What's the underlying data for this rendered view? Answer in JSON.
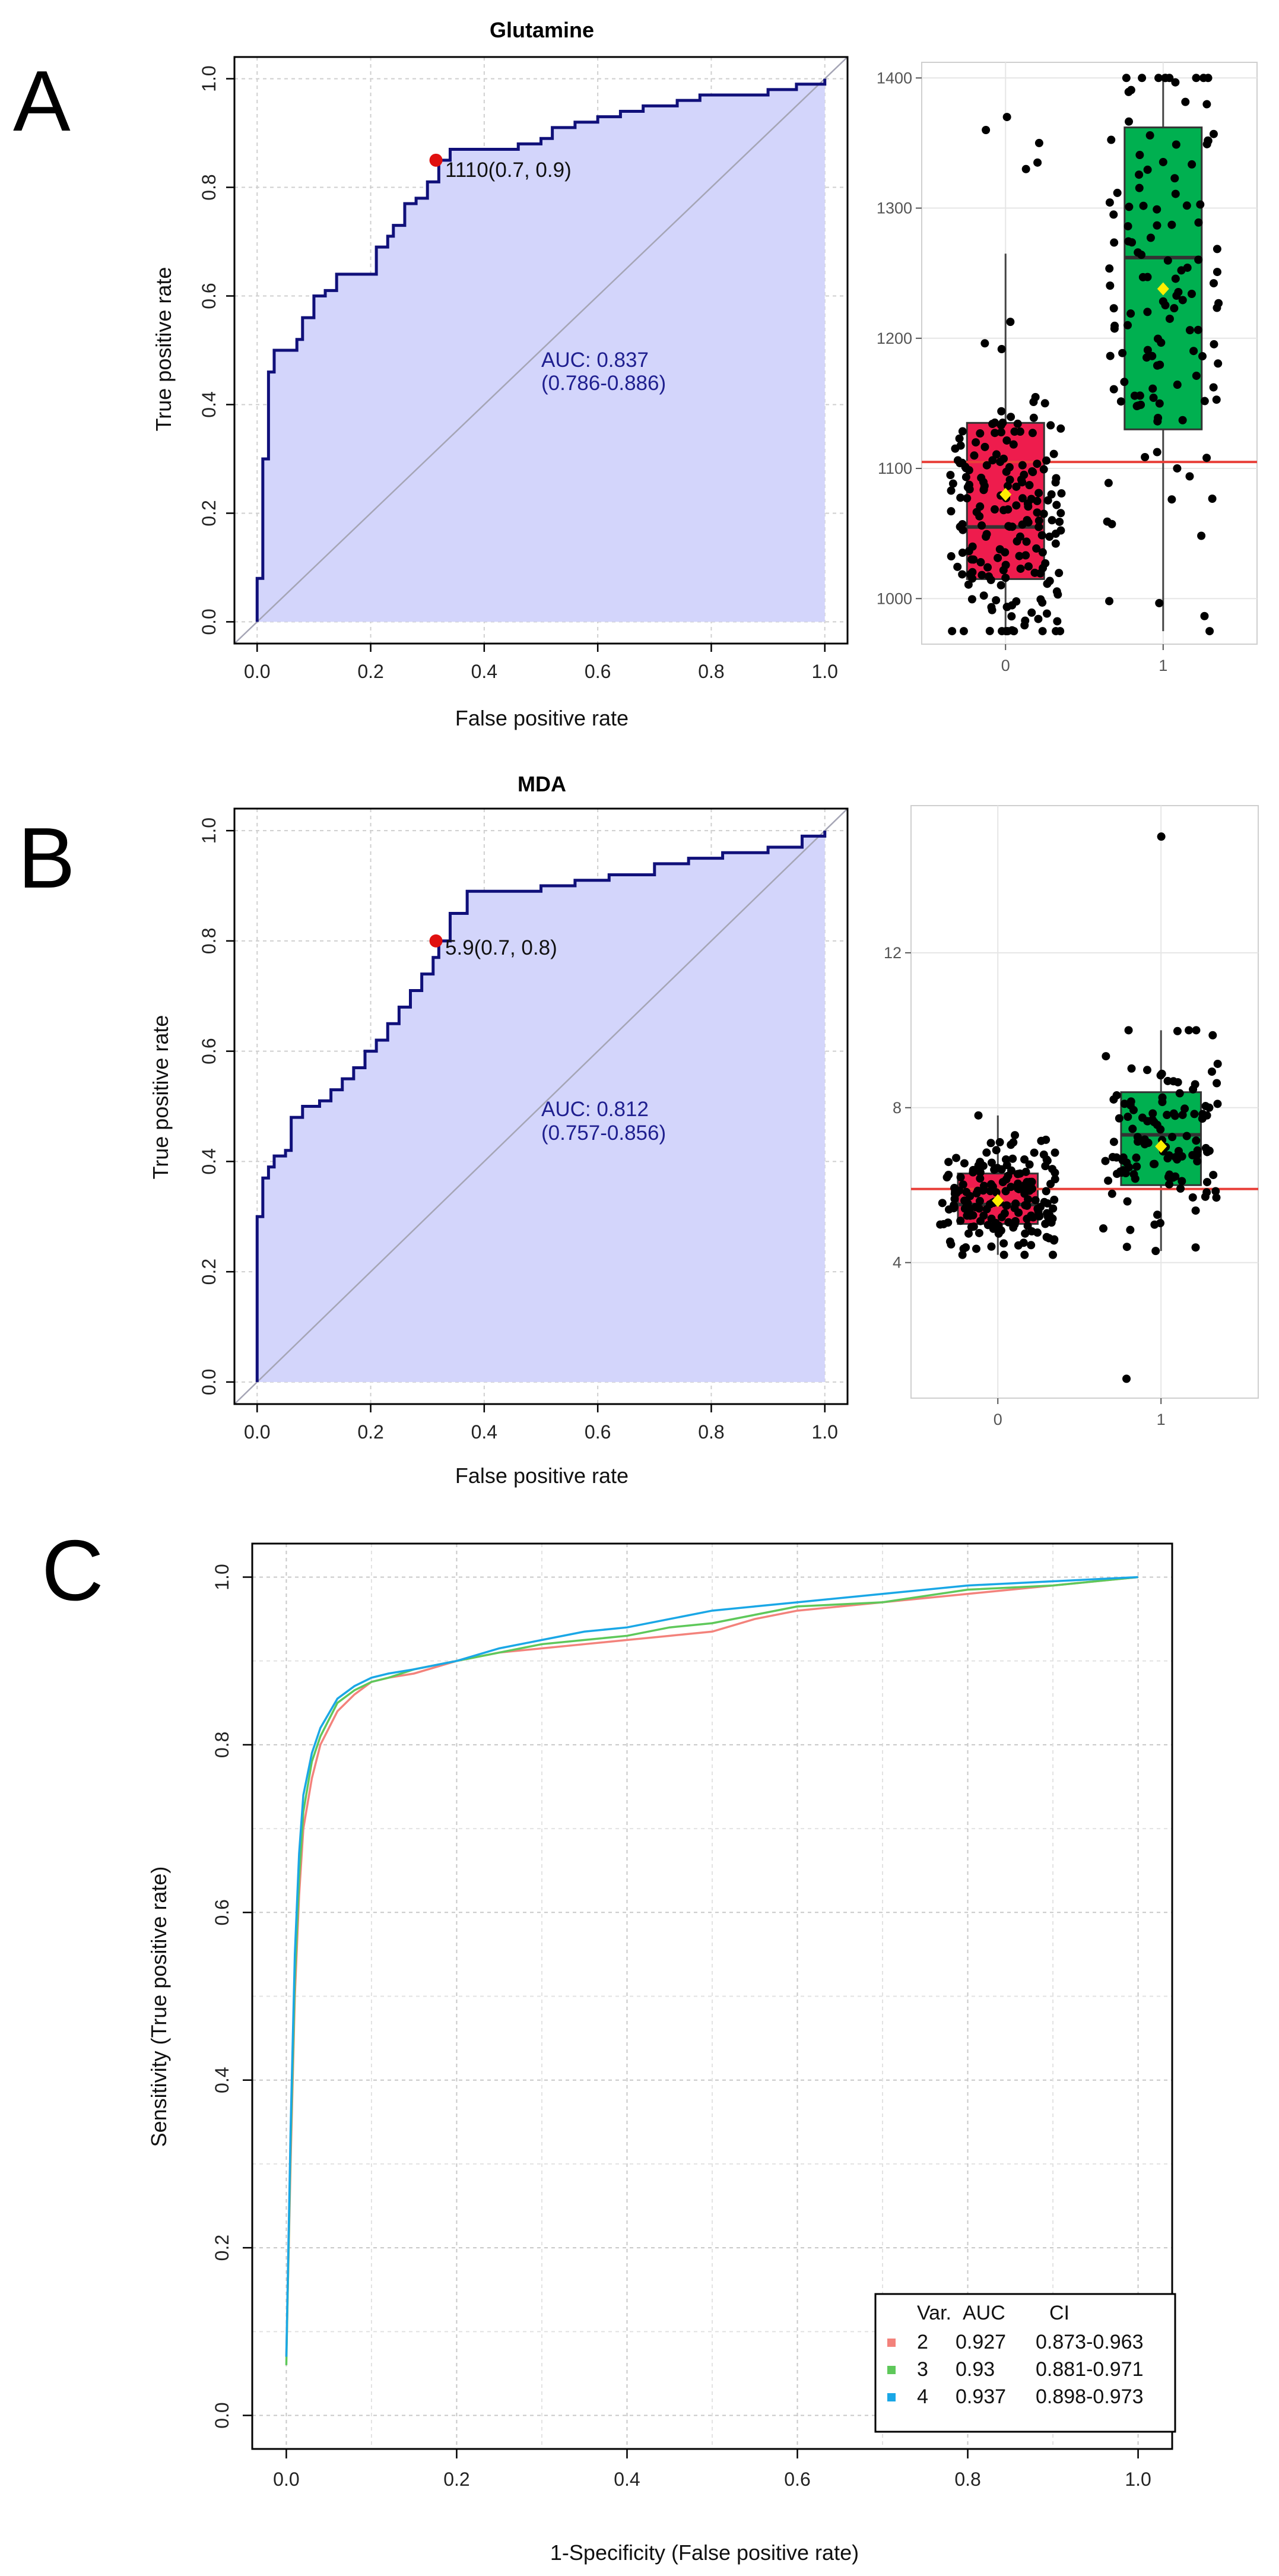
{
  "panel_labels": {
    "a": "A",
    "b": "B",
    "c": "C"
  },
  "colors": {
    "roc_line": "#10107a",
    "roc_fill": "#d3d5fb",
    "group0_box": "#ee1c4d",
    "group1_box": "#00b050",
    "cutoff_line": "#e8403a",
    "cutoff_point": "#e01010",
    "mean_marker": "#ffee00",
    "series_2": "#f3827b",
    "series_3": "#5ec85a",
    "series_4": "#1aa7e6"
  },
  "chart_data": [
    {
      "id": "A_roc",
      "type": "line",
      "title": "Glutamine",
      "xlabel": "False positive rate",
      "ylabel": "True positive rate",
      "xlim": [
        0,
        1
      ],
      "ylim": [
        0,
        1
      ],
      "xticks": [
        "0.0",
        "0.2",
        "0.4",
        "0.6",
        "0.8",
        "1.0"
      ],
      "yticks": [
        "0.0",
        "0.2",
        "0.4",
        "0.6",
        "0.8",
        "1.0"
      ],
      "roc": [
        [
          0,
          0
        ],
        [
          0,
          0.08
        ],
        [
          0.01,
          0.16
        ],
        [
          0.01,
          0.3
        ],
        [
          0.02,
          0.38
        ],
        [
          0.02,
          0.46
        ],
        [
          0.03,
          0.5
        ],
        [
          0.06,
          0.5
        ],
        [
          0.07,
          0.52
        ],
        [
          0.08,
          0.56
        ],
        [
          0.1,
          0.6
        ],
        [
          0.12,
          0.61
        ],
        [
          0.14,
          0.64
        ],
        [
          0.2,
          0.64
        ],
        [
          0.21,
          0.69
        ],
        [
          0.23,
          0.71
        ],
        [
          0.24,
          0.73
        ],
        [
          0.26,
          0.77
        ],
        [
          0.28,
          0.78
        ],
        [
          0.3,
          0.81
        ],
        [
          0.32,
          0.85
        ],
        [
          0.34,
          0.87
        ],
        [
          0.4,
          0.87
        ],
        [
          0.46,
          0.88
        ],
        [
          0.5,
          0.89
        ],
        [
          0.52,
          0.91
        ],
        [
          0.56,
          0.92
        ],
        [
          0.6,
          0.93
        ],
        [
          0.64,
          0.94
        ],
        [
          0.68,
          0.95
        ],
        [
          0.74,
          0.96
        ],
        [
          0.78,
          0.97
        ],
        [
          0.84,
          0.97
        ],
        [
          0.9,
          0.98
        ],
        [
          0.95,
          0.99
        ],
        [
          1,
          1
        ]
      ],
      "auc_label": "AUC: 0.837",
      "ci_label": "(0.786-0.886)",
      "cutoff": {
        "x": 0.315,
        "y": 0.85,
        "label": "1110(0.7, 0.9)"
      }
    },
    {
      "id": "A_box",
      "type": "box",
      "categories": [
        "0",
        "1"
      ],
      "ylim": [
        965,
        1412
      ],
      "yticks": [
        "1000",
        "1100",
        "1200",
        "1300",
        "1400"
      ],
      "cutoff_value": 1105,
      "boxes": [
        {
          "q1": 1015,
          "median": 1055,
          "q3": 1135,
          "whisker_low": 975,
          "whisker_high": 1265,
          "mean": 1080
        },
        {
          "q1": 1130,
          "median": 1262,
          "q3": 1362,
          "whisker_low": 975,
          "whisker_high": 1400,
          "mean": 1238
        }
      ],
      "points": {
        "group0": {
          "n": 190,
          "center": 1060,
          "spread": 55,
          "min": 975,
          "max": 1270,
          "outliers": [
            1360,
            1370,
            1330,
            1335,
            1350
          ]
        },
        "group1": {
          "n": 125,
          "center": 1245,
          "spread": 120,
          "min": 975,
          "max": 1400,
          "outliers": []
        }
      }
    },
    {
      "id": "B_roc",
      "type": "line",
      "title": "MDA",
      "xlabel": "False positive rate",
      "ylabel": "True positive rate",
      "xlim": [
        0,
        1
      ],
      "ylim": [
        0,
        1
      ],
      "xticks": [
        "0.0",
        "0.2",
        "0.4",
        "0.6",
        "0.8",
        "1.0"
      ],
      "yticks": [
        "0.0",
        "0.2",
        "0.4",
        "0.6",
        "0.8",
        "1.0"
      ],
      "roc": [
        [
          0,
          0
        ],
        [
          0,
          0.3
        ],
        [
          0.01,
          0.34
        ],
        [
          0.01,
          0.37
        ],
        [
          0.02,
          0.39
        ],
        [
          0.03,
          0.41
        ],
        [
          0.05,
          0.42
        ],
        [
          0.06,
          0.48
        ],
        [
          0.08,
          0.5
        ],
        [
          0.11,
          0.51
        ],
        [
          0.13,
          0.53
        ],
        [
          0.15,
          0.55
        ],
        [
          0.17,
          0.57
        ],
        [
          0.19,
          0.6
        ],
        [
          0.21,
          0.62
        ],
        [
          0.23,
          0.65
        ],
        [
          0.25,
          0.68
        ],
        [
          0.27,
          0.71
        ],
        [
          0.29,
          0.74
        ],
        [
          0.31,
          0.77
        ],
        [
          0.32,
          0.8
        ],
        [
          0.34,
          0.85
        ],
        [
          0.37,
          0.89
        ],
        [
          0.43,
          0.89
        ],
        [
          0.5,
          0.9
        ],
        [
          0.56,
          0.91
        ],
        [
          0.62,
          0.92
        ],
        [
          0.7,
          0.94
        ],
        [
          0.76,
          0.95
        ],
        [
          0.82,
          0.96
        ],
        [
          0.9,
          0.97
        ],
        [
          0.96,
          0.99
        ],
        [
          1,
          1
        ]
      ],
      "auc_label": "AUC: 0.812",
      "ci_label": "(0.757-0.856)",
      "cutoff": {
        "x": 0.315,
        "y": 0.8,
        "label": "5.9(0.7, 0.8)"
      }
    },
    {
      "id": "B_box",
      "type": "box",
      "categories": [
        "0",
        "1"
      ],
      "ylim": [
        0.5,
        15.8
      ],
      "yticks": [
        "4",
        "8",
        "12"
      ],
      "cutoff_value": 5.9,
      "boxes": [
        {
          "q1": 5.0,
          "median": 5.5,
          "q3": 6.3,
          "whisker_low": 4.2,
          "whisker_high": 7.8,
          "mean": 5.6
        },
        {
          "q1": 6.0,
          "median": 7.3,
          "q3": 8.4,
          "whisker_low": 4.3,
          "whisker_high": 10.0,
          "mean": 7.0
        }
      ],
      "points": {
        "group0": {
          "n": 180,
          "center": 5.6,
          "spread": 0.8,
          "min": 4.2,
          "max": 7.8,
          "outliers": []
        },
        "group1": {
          "n": 120,
          "center": 7.2,
          "spread": 1.3,
          "min": 4.3,
          "max": 10.0,
          "outliers": [
            15.0,
            1.0
          ]
        }
      }
    },
    {
      "id": "C_roc",
      "type": "line",
      "xlabel": "1-Specificity (False positive rate)",
      "ylabel": "Sensitivity (True positive rate)",
      "xlim": [
        -0.04,
        1.04
      ],
      "ylim": [
        -0.04,
        1.04
      ],
      "xticks": [
        "0.0",
        "0.2",
        "0.4",
        "0.6",
        "0.8",
        "1.0"
      ],
      "yticks": [
        "0.0",
        "0.2",
        "0.4",
        "0.6",
        "0.8",
        "1.0"
      ],
      "legend": {
        "position": "bottom-right",
        "header": [
          "Var.",
          "AUC",
          "CI"
        ],
        "entries": [
          {
            "var": "2",
            "auc": "0.927",
            "ci": "0.873-0.963"
          },
          {
            "var": "3",
            "auc": "0.93",
            "ci": "0.881-0.971"
          },
          {
            "var": "4",
            "auc": "0.937",
            "ci": "0.898-0.973"
          }
        ]
      },
      "series": [
        {
          "name": "2",
          "points": [
            [
              0,
              0.07
            ],
            [
              0.005,
              0.3
            ],
            [
              0.01,
              0.5
            ],
            [
              0.015,
              0.62
            ],
            [
              0.02,
              0.7
            ],
            [
              0.03,
              0.76
            ],
            [
              0.04,
              0.8
            ],
            [
              0.06,
              0.84
            ],
            [
              0.08,
              0.86
            ],
            [
              0.1,
              0.875
            ],
            [
              0.12,
              0.88
            ],
            [
              0.15,
              0.885
            ],
            [
              0.2,
              0.9
            ],
            [
              0.25,
              0.91
            ],
            [
              0.3,
              0.915
            ],
            [
              0.35,
              0.92
            ],
            [
              0.4,
              0.925
            ],
            [
              0.45,
              0.93
            ],
            [
              0.5,
              0.935
            ],
            [
              0.55,
              0.95
            ],
            [
              0.6,
              0.96
            ],
            [
              0.7,
              0.97
            ],
            [
              0.8,
              0.98
            ],
            [
              0.9,
              0.99
            ],
            [
              1,
              1
            ]
          ]
        },
        {
          "name": "3",
          "points": [
            [
              0,
              0.06
            ],
            [
              0.005,
              0.32
            ],
            [
              0.01,
              0.52
            ],
            [
              0.015,
              0.64
            ],
            [
              0.02,
              0.72
            ],
            [
              0.03,
              0.78
            ],
            [
              0.04,
              0.81
            ],
            [
              0.06,
              0.85
            ],
            [
              0.08,
              0.865
            ],
            [
              0.1,
              0.875
            ],
            [
              0.12,
              0.88
            ],
            [
              0.15,
              0.89
            ],
            [
              0.2,
              0.9
            ],
            [
              0.25,
              0.91
            ],
            [
              0.3,
              0.92
            ],
            [
              0.35,
              0.925
            ],
            [
              0.4,
              0.93
            ],
            [
              0.45,
              0.94
            ],
            [
              0.5,
              0.945
            ],
            [
              0.55,
              0.955
            ],
            [
              0.6,
              0.965
            ],
            [
              0.7,
              0.97
            ],
            [
              0.8,
              0.985
            ],
            [
              0.9,
              0.99
            ],
            [
              1,
              1
            ]
          ]
        },
        {
          "name": "4",
          "points": [
            [
              0,
              0.07
            ],
            [
              0.005,
              0.34
            ],
            [
              0.01,
              0.55
            ],
            [
              0.015,
              0.67
            ],
            [
              0.02,
              0.74
            ],
            [
              0.03,
              0.79
            ],
            [
              0.04,
              0.82
            ],
            [
              0.06,
              0.855
            ],
            [
              0.08,
              0.87
            ],
            [
              0.1,
              0.88
            ],
            [
              0.12,
              0.885
            ],
            [
              0.15,
              0.89
            ],
            [
              0.2,
              0.9
            ],
            [
              0.25,
              0.915
            ],
            [
              0.3,
              0.925
            ],
            [
              0.35,
              0.935
            ],
            [
              0.4,
              0.94
            ],
            [
              0.45,
              0.95
            ],
            [
              0.5,
              0.96
            ],
            [
              0.55,
              0.965
            ],
            [
              0.6,
              0.97
            ],
            [
              0.7,
              0.98
            ],
            [
              0.8,
              0.99
            ],
            [
              0.9,
              0.995
            ],
            [
              1,
              1
            ]
          ]
        }
      ]
    }
  ]
}
